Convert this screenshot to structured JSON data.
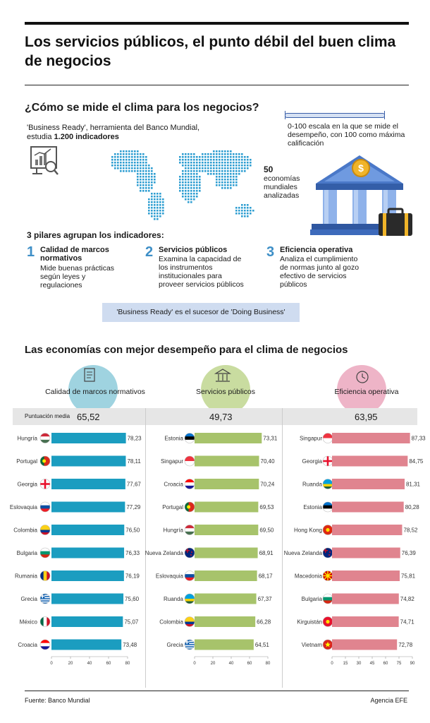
{
  "title": "Los servicios públicos, el punto débil del buen clima de negocios",
  "section1": {
    "heading": "¿Cómo se mide el clima para los negocios?",
    "intro_text": "'Business Ready', herramienta del Banco Mundial, estudia",
    "intro_bold": "1.200 indicadores",
    "scale_text": "0-100 escala en la que se mide el desempeño, con 100 como máxima calificación",
    "economies_number": "50",
    "economies_text": "economías mundiales analizadas",
    "pillars_heading": "3 pilares agrupan los indicadores:",
    "pillars": [
      {
        "num": "1",
        "title": "Calidad de marcos normativos",
        "desc": "Mide buenas prácticas según leyes y regulaciones"
      },
      {
        "num": "2",
        "title": "Servicios públicos",
        "desc": "Examina la capacidad de los instrumentos institucionales para proveer servicios públicos"
      },
      {
        "num": "3",
        "title": "Eficiencia operativa",
        "desc": "Analiza el cumplimiento de normas junto al gozo efectivo de servicios públicos"
      }
    ],
    "note": "'Business Ready' es el sucesor de 'Doing Business'"
  },
  "section2": {
    "heading": "Las economías con mejor desempeño para el clima de negocios",
    "avg_label": "Puntuación media"
  },
  "footer": {
    "source": "Fuente: Banco Mundial",
    "agency": "Agencia EFE"
  },
  "chart_data": [
    {
      "type": "bar",
      "title": "Calidad de marcos normativos",
      "average": "65,52",
      "color": "#1b9dc0",
      "circle_color": "#9fd3e0",
      "xlim": [
        0,
        80
      ],
      "ticks": [
        0,
        20,
        40,
        60,
        80
      ],
      "categories": [
        "Hungría",
        "Portugal",
        "Georgia",
        "Eslovaquia",
        "Colombia",
        "Bulgaria",
        "Rumania",
        "Grecia",
        "México",
        "Croacia"
      ],
      "values": [
        78.23,
        78.11,
        77.67,
        77.29,
        76.5,
        76.33,
        76.19,
        75.6,
        75.07,
        73.48
      ],
      "labels": [
        "78,23",
        "78,11",
        "77,67",
        "77,29",
        "76,50",
        "76,33",
        "76,19",
        "75,60",
        "75,07",
        "73,48"
      ]
    },
    {
      "type": "bar",
      "title": "Servicios públicos",
      "average": "49,73",
      "color": "#a7c36b",
      "circle_color": "#c9dca0",
      "xlim": [
        0,
        80
      ],
      "ticks": [
        0,
        20,
        40,
        60,
        80
      ],
      "categories": [
        "Estonia",
        "Singapur",
        "Croacia",
        "Portugal",
        "Hungría",
        "Nueva Zelanda",
        "Eslovaquia",
        "Ruanda",
        "Colombia",
        "Grecia"
      ],
      "values": [
        73.31,
        70.4,
        70.24,
        69.53,
        69.5,
        68.91,
        68.17,
        67.37,
        66.28,
        64.51
      ],
      "labels": [
        "73,31",
        "70,40",
        "70,24",
        "69,53",
        "69,50",
        "68,91",
        "68,17",
        "67,37",
        "66,28",
        "64,51"
      ]
    },
    {
      "type": "bar",
      "title": "Eficiencia operativa",
      "average": "63,95",
      "color": "#e0848f",
      "circle_color": "#eeb4c7",
      "xlim": [
        0,
        90
      ],
      "ticks": [
        0,
        15,
        30,
        45,
        60,
        75,
        90
      ],
      "categories": [
        "Singapur",
        "Georgia",
        "Ruanda",
        "Estonia",
        "Hong Kong",
        "Nueva Zelanda",
        "Macedonia",
        "Bulgaria",
        "Kirguistán",
        "Vietnam"
      ],
      "values": [
        87.33,
        84.75,
        81.31,
        80.28,
        78.52,
        76.39,
        75.81,
        74.82,
        74.71,
        72.78
      ],
      "labels": [
        "87,33",
        "84,75",
        "81,31",
        "80,28",
        "78,52",
        "76,39",
        "75,81",
        "74,82",
        "74,71",
        "72,78"
      ]
    }
  ]
}
